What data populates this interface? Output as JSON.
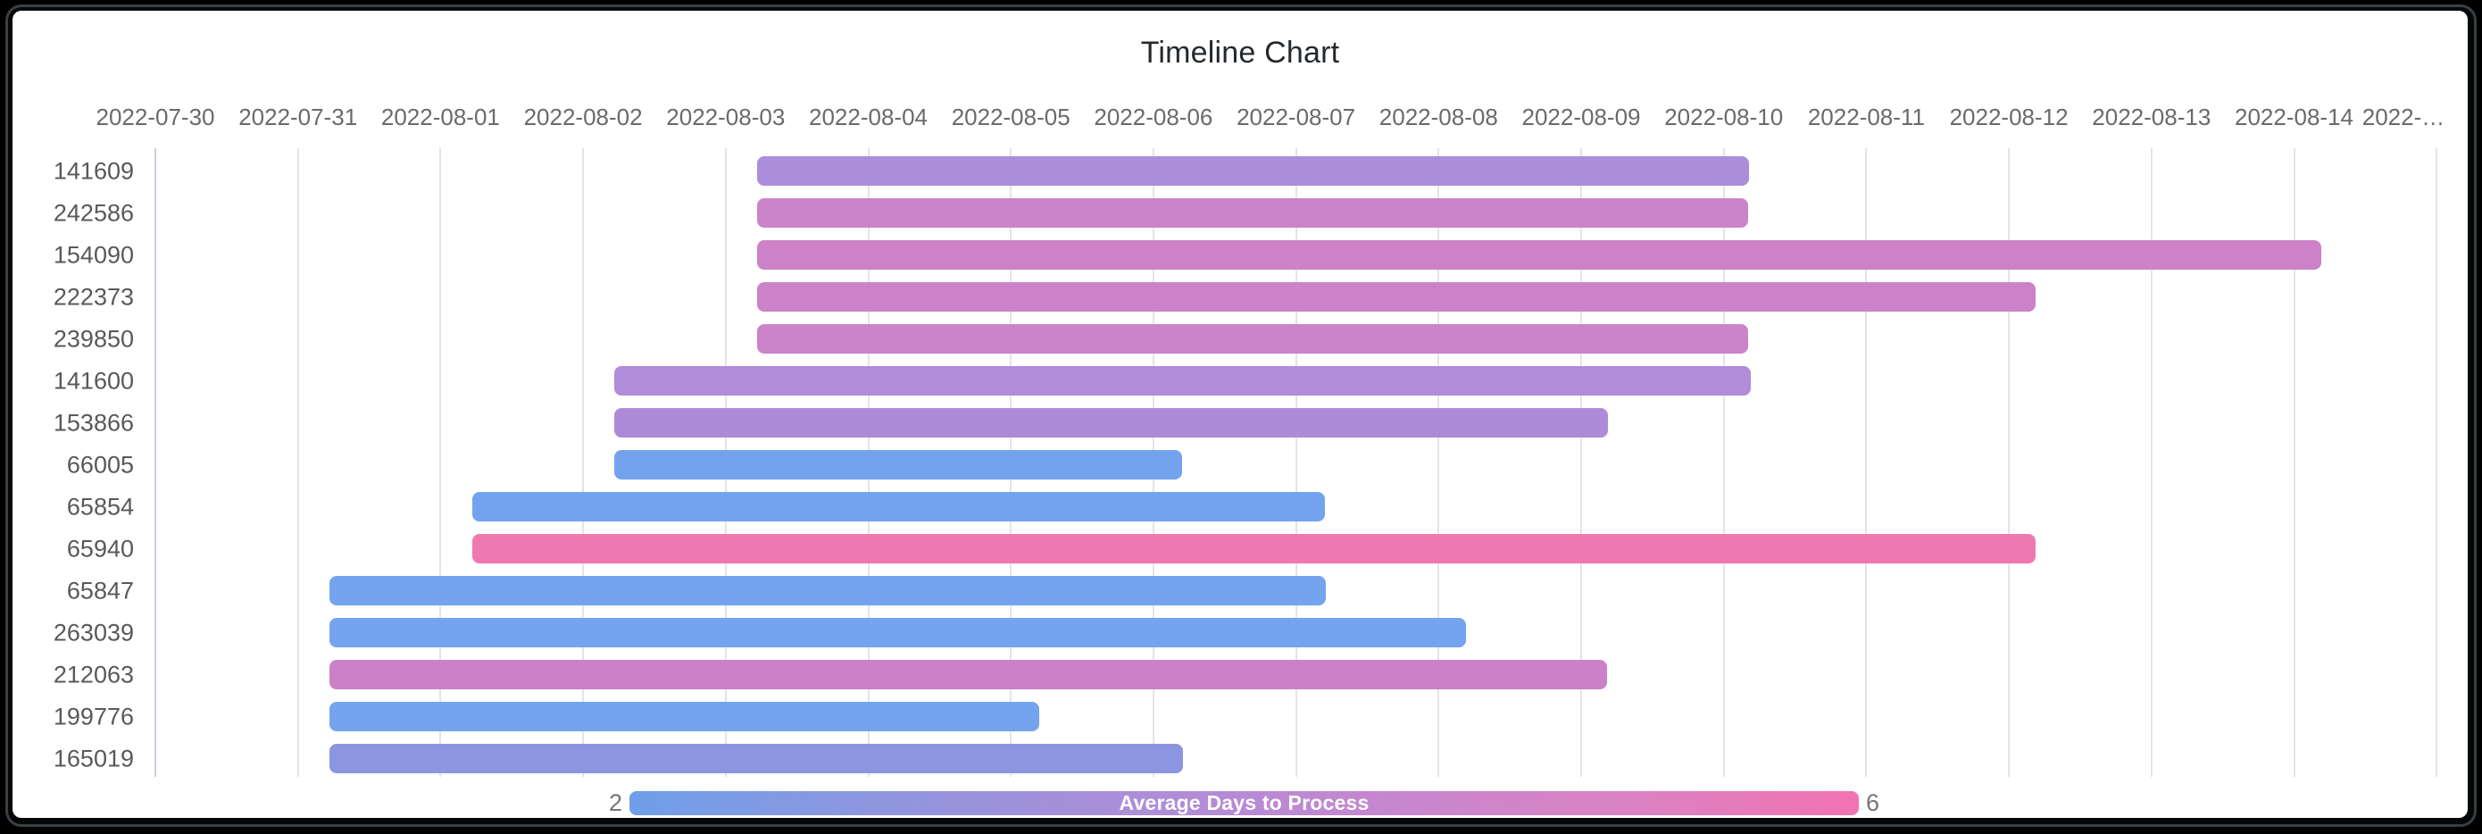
{
  "title": "Timeline Chart",
  "chart_data": {
    "type": "timeline",
    "title": "Timeline Chart",
    "x_axis": {
      "start_date": "2022-07-30",
      "end_visible": "2022-08-15",
      "days_per_tick": 1,
      "gridlines": true,
      "tick_labels": [
        "2022-07-30",
        "2022-07-31",
        "2022-08-01",
        "2022-08-02",
        "2022-08-03",
        "2022-08-04",
        "2022-08-05",
        "2022-08-06",
        "2022-08-07",
        "2022-08-08",
        "2022-08-09",
        "2022-08-10",
        "2022-08-11",
        "2022-08-12",
        "2022-08-13",
        "2022-08-14",
        "2022-…"
      ]
    },
    "rows": [
      {
        "label": "141609",
        "start": "2022-08-03",
        "end": "2022-08-10",
        "duration_days": 7,
        "start_day": 4.22,
        "end_day": 11.18,
        "color": "#ab8ddb"
      },
      {
        "label": "242586",
        "start": "2022-08-03",
        "end": "2022-08-10",
        "duration_days": 7,
        "start_day": 4.22,
        "end_day": 11.17,
        "color": "#cb83ca"
      },
      {
        "label": "154090",
        "start": "2022-08-03",
        "end": "2022-08-14",
        "duration_days": 11,
        "start_day": 4.22,
        "end_day": 15.19,
        "color": "#cd82c8"
      },
      {
        "label": "222373",
        "start": "2022-08-03",
        "end": "2022-08-12",
        "duration_days": 9,
        "start_day": 4.22,
        "end_day": 13.19,
        "color": "#cc82c8"
      },
      {
        "label": "239850",
        "start": "2022-08-03",
        "end": "2022-08-10",
        "duration_days": 7,
        "start_day": 4.22,
        "end_day": 11.17,
        "color": "#cb83c9"
      },
      {
        "label": "141600",
        "start": "2022-08-02",
        "end": "2022-08-10",
        "duration_days": 8,
        "start_day": 3.22,
        "end_day": 11.19,
        "color": "#b18cd9"
      },
      {
        "label": "153866",
        "start": "2022-08-02",
        "end": "2022-08-09",
        "duration_days": 7,
        "start_day": 3.22,
        "end_day": 10.19,
        "color": "#ae8bd9"
      },
      {
        "label": "66005",
        "start": "2022-08-02",
        "end": "2022-08-06",
        "duration_days": 4,
        "start_day": 3.22,
        "end_day": 7.2,
        "color": "#74a3ee"
      },
      {
        "label": "65854",
        "start": "2022-08-01",
        "end": "2022-08-07",
        "duration_days": 6,
        "start_day": 2.22,
        "end_day": 8.2,
        "color": "#73a3ee"
      },
      {
        "label": "65940",
        "start": "2022-08-01",
        "end": "2022-08-12",
        "duration_days": 11,
        "start_day": 2.22,
        "end_day": 13.19,
        "color": "#f078b1"
      },
      {
        "label": "65847",
        "start": "2022-07-31",
        "end": "2022-08-07",
        "duration_days": 7,
        "start_day": 1.22,
        "end_day": 8.21,
        "color": "#74a4ee"
      },
      {
        "label": "263039",
        "start": "2022-07-31",
        "end": "2022-08-08",
        "duration_days": 8,
        "start_day": 1.22,
        "end_day": 9.19,
        "color": "#74a4ee"
      },
      {
        "label": "212063",
        "start": "2022-07-31",
        "end": "2022-08-09",
        "duration_days": 9,
        "start_day": 1.22,
        "end_day": 10.18,
        "color": "#cb81c8"
      },
      {
        "label": "199776",
        "start": "2022-07-31",
        "end": "2022-08-05",
        "duration_days": 5,
        "start_day": 1.22,
        "end_day": 6.2,
        "color": "#75a4ee"
      },
      {
        "label": "165019",
        "start": "2022-07-31",
        "end": "2022-08-06",
        "duration_days": 6,
        "start_day": 1.22,
        "end_day": 7.21,
        "color": "#8c96e0"
      }
    ],
    "legend": {
      "min": "2",
      "max": "6",
      "label": "Average Days to Process",
      "gradient": [
        "#6f9fe9",
        "#8e96de",
        "#ab8ed9",
        "#c487cf",
        "#d983c4",
        "#f173b1"
      ]
    }
  }
}
